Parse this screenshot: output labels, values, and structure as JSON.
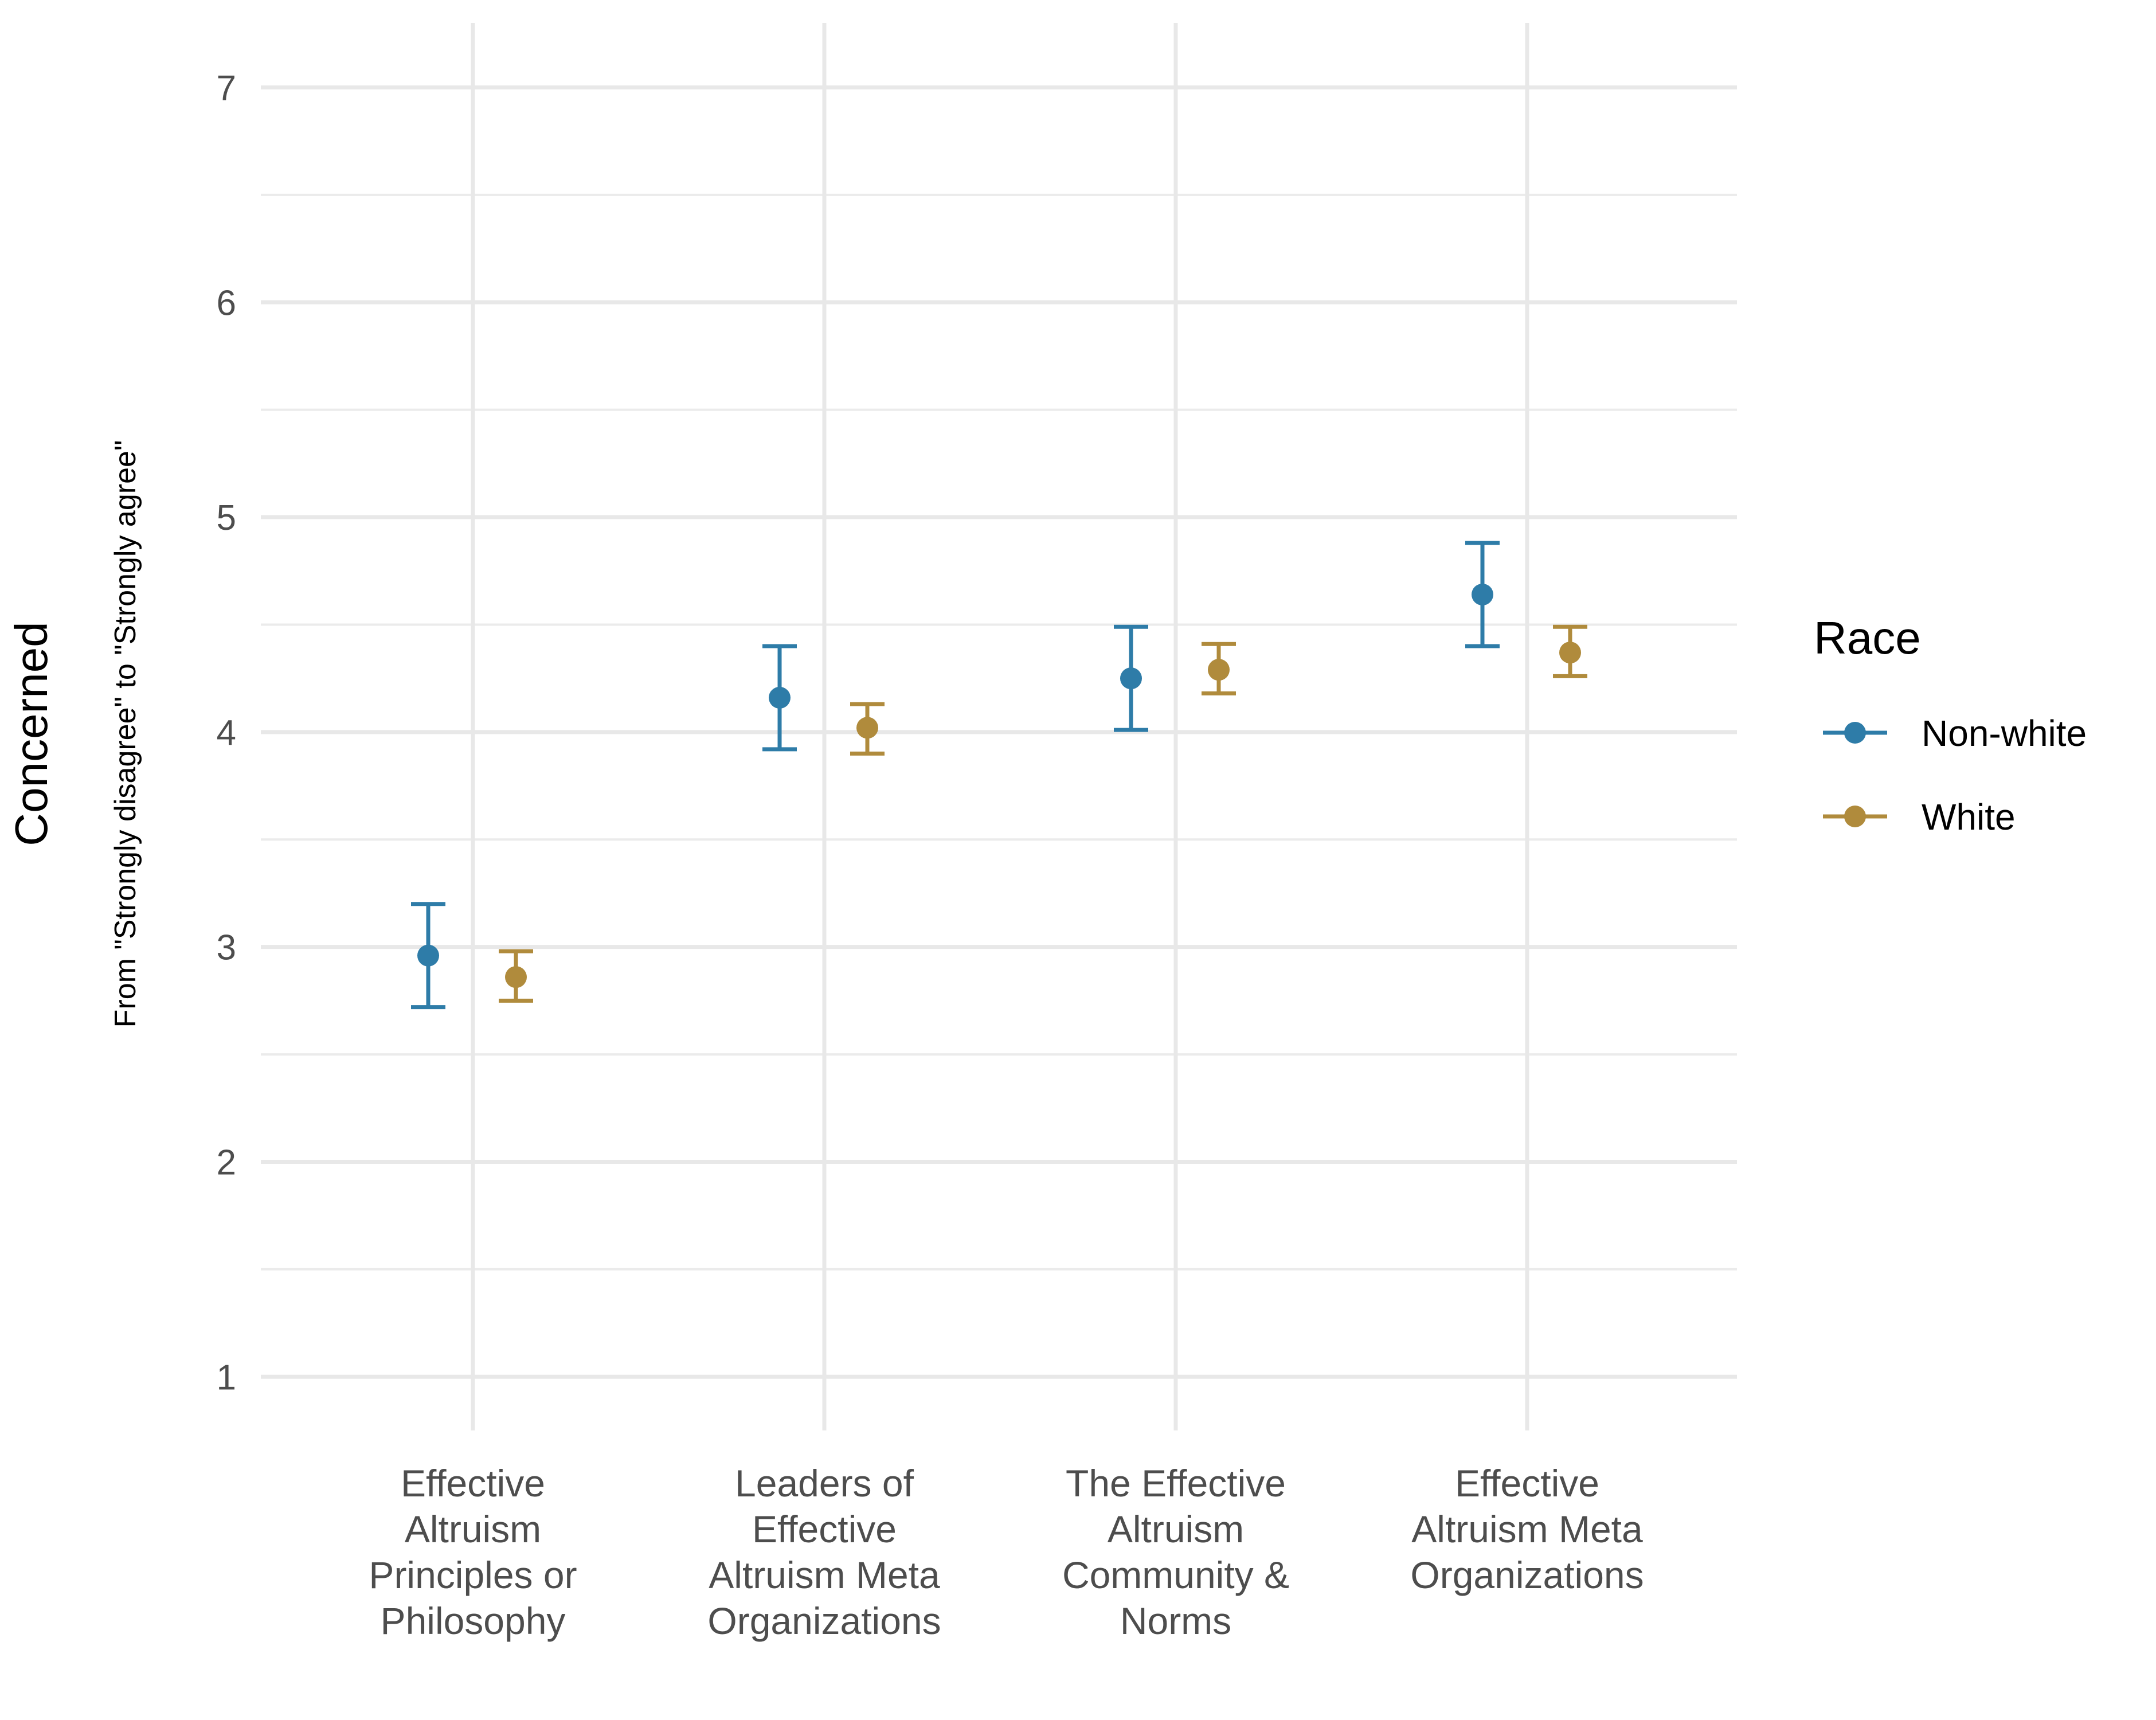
{
  "chart_data": {
    "type": "scatter",
    "subtype": "point-with-error-bars",
    "categories": [
      [
        "Effective",
        "Altruism",
        "Principles or",
        "Philosophy"
      ],
      [
        "Leaders of",
        "Effective",
        "Altruism Meta",
        "Organizations"
      ],
      [
        "The Effective",
        "Altruism",
        "Community &",
        "Norms"
      ],
      [
        "Effective",
        "Altruism Meta",
        "Organizations"
      ]
    ],
    "ylabel": "Concerned",
    "ylabel_sub": "From \"Strongly disagree\" to \"Strongly agree\"",
    "ylim": [
      0.75,
      7.3
    ],
    "yticks": [
      "1",
      "2",
      "3",
      "4",
      "5",
      "6",
      "7"
    ],
    "grid": true,
    "legend": {
      "title": "Race",
      "position": "right"
    },
    "series": [
      {
        "name": "Non-white",
        "color": "#2e7ca8",
        "values": [
          2.96,
          4.16,
          4.25,
          4.64
        ],
        "lower": [
          2.72,
          3.92,
          4.01,
          4.4
        ],
        "upper": [
          3.2,
          4.4,
          4.49,
          4.88
        ]
      },
      {
        "name": "White",
        "color": "#b08b3c",
        "values": [
          2.86,
          4.02,
          4.29,
          4.37
        ],
        "lower": [
          2.75,
          3.9,
          4.18,
          4.26
        ],
        "upper": [
          2.98,
          4.13,
          4.41,
          4.49
        ]
      }
    ]
  }
}
